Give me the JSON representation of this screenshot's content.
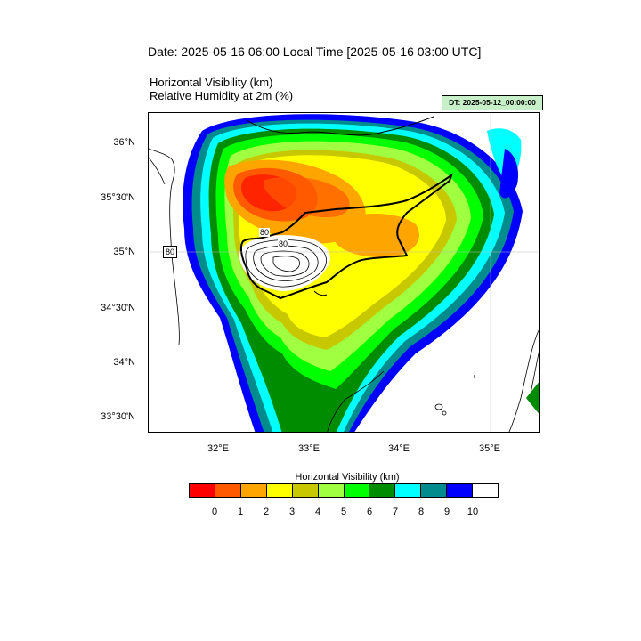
{
  "header": {
    "title": "Date: 2025-05-16  06:00 Local Time [2025-05-16  03:00 UTC]",
    "subtitle_1": "Horizontal Visibility   (km)",
    "subtitle_2": "Relative Humidity at 2m   (%)",
    "dt_badge": "DT: 2025-05-12_00:00:00"
  },
  "map": {
    "lat_labels": [
      "36°N",
      "35°30'N",
      "35°N",
      "34°30'N",
      "34°N",
      "33°30'N"
    ],
    "lon_labels": [
      "32°E",
      "33°E",
      "34°E",
      "35°E"
    ],
    "contour_labels": [
      "80",
      "80",
      "80"
    ]
  },
  "legend": {
    "title": "Horizontal Visibility  (km)",
    "ticks": [
      "0",
      "1",
      "2",
      "3",
      "4",
      "5",
      "6",
      "7",
      "8",
      "9",
      "10"
    ],
    "colors": [
      "#ff0000",
      "#ff5a00",
      "#ffa500",
      "#ffff00",
      "#c8c800",
      "#a0ff40",
      "#00ff00",
      "#008c00",
      "#00ffff",
      "#008c8c",
      "#0000ff",
      "#ffffff"
    ]
  }
}
